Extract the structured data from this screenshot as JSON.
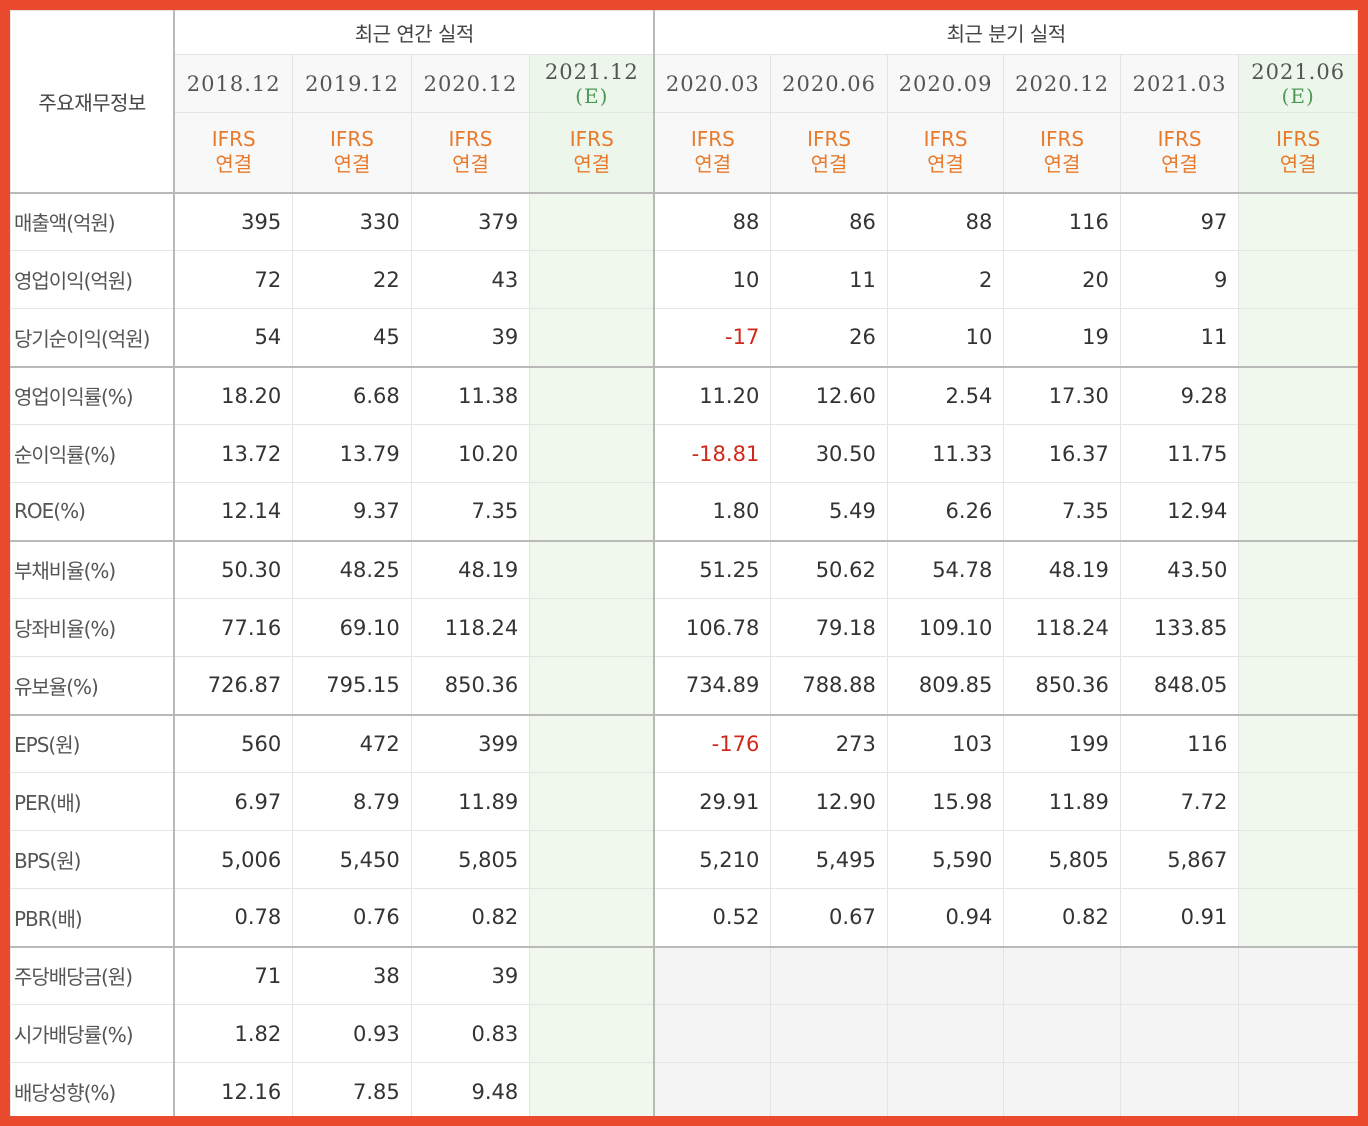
{
  "header": {
    "label_title": "주요재무정보",
    "annual_group": "최근 연간 실적",
    "quarter_group": "최근 분기 실적",
    "estimate_mark": "(E)",
    "ifrs_top": "IFRS",
    "ifrs_bottom": "연결",
    "annual_periods": [
      "2018.12",
      "2019.12",
      "2020.12",
      "2021.12"
    ],
    "quarter_periods": [
      "2020.03",
      "2020.06",
      "2020.09",
      "2020.12",
      "2021.03",
      "2021.06"
    ]
  },
  "colors": {
    "frame": "#ea4a2d",
    "ifrs_text": "#e87a2c",
    "estimate_text": "#4c9a58",
    "estimate_bg": "#f0f8ee",
    "negative": "#d2281c"
  },
  "rows": [
    {
      "label": "매출액(억원)",
      "annual": [
        "395",
        "330",
        "379",
        ""
      ],
      "quarter": [
        "88",
        "86",
        "88",
        "116",
        "97",
        ""
      ]
    },
    {
      "label": "영업이익(억원)",
      "annual": [
        "72",
        "22",
        "43",
        ""
      ],
      "quarter": [
        "10",
        "11",
        "2",
        "20",
        "9",
        ""
      ]
    },
    {
      "label": "당기순이익(억원)",
      "annual": [
        "54",
        "45",
        "39",
        ""
      ],
      "quarter": [
        "-17",
        "26",
        "10",
        "19",
        "11",
        ""
      ]
    },
    {
      "label": "영업이익률(%)",
      "annual": [
        "18.20",
        "6.68",
        "11.38",
        ""
      ],
      "quarter": [
        "11.20",
        "12.60",
        "2.54",
        "17.30",
        "9.28",
        ""
      ]
    },
    {
      "label": "순이익률(%)",
      "annual": [
        "13.72",
        "13.79",
        "10.20",
        ""
      ],
      "quarter": [
        "-18.81",
        "30.50",
        "11.33",
        "16.37",
        "11.75",
        ""
      ]
    },
    {
      "label": "ROE(%)",
      "annual": [
        "12.14",
        "9.37",
        "7.35",
        ""
      ],
      "quarter": [
        "1.80",
        "5.49",
        "6.26",
        "7.35",
        "12.94",
        ""
      ]
    },
    {
      "label": "부채비율(%)",
      "annual": [
        "50.30",
        "48.25",
        "48.19",
        ""
      ],
      "quarter": [
        "51.25",
        "50.62",
        "54.78",
        "48.19",
        "43.50",
        ""
      ]
    },
    {
      "label": "당좌비율(%)",
      "annual": [
        "77.16",
        "69.10",
        "118.24",
        ""
      ],
      "quarter": [
        "106.78",
        "79.18",
        "109.10",
        "118.24",
        "133.85",
        ""
      ]
    },
    {
      "label": "유보율(%)",
      "annual": [
        "726.87",
        "795.15",
        "850.36",
        ""
      ],
      "quarter": [
        "734.89",
        "788.88",
        "809.85",
        "850.36",
        "848.05",
        ""
      ]
    },
    {
      "label": "EPS(원)",
      "annual": [
        "560",
        "472",
        "399",
        ""
      ],
      "quarter": [
        "-176",
        "273",
        "103",
        "199",
        "116",
        ""
      ]
    },
    {
      "label": "PER(배)",
      "annual": [
        "6.97",
        "8.79",
        "11.89",
        ""
      ],
      "quarter": [
        "29.91",
        "12.90",
        "15.98",
        "11.89",
        "7.72",
        ""
      ]
    },
    {
      "label": "BPS(원)",
      "annual": [
        "5,006",
        "5,450",
        "5,805",
        ""
      ],
      "quarter": [
        "5,210",
        "5,495",
        "5,590",
        "5,805",
        "5,867",
        ""
      ]
    },
    {
      "label": "PBR(배)",
      "annual": [
        "0.78",
        "0.76",
        "0.82",
        ""
      ],
      "quarter": [
        "0.52",
        "0.67",
        "0.94",
        "0.82",
        "0.91",
        ""
      ]
    },
    {
      "label": "주당배당금(원)",
      "annual": [
        "71",
        "38",
        "39",
        ""
      ],
      "quarter": [
        "",
        "",
        "",
        "",
        "",
        ""
      ]
    },
    {
      "label": "시가배당률(%)",
      "annual": [
        "1.82",
        "0.93",
        "0.83",
        ""
      ],
      "quarter": [
        "",
        "",
        "",
        "",
        "",
        ""
      ]
    },
    {
      "label": "배당성향(%)",
      "annual": [
        "12.16",
        "7.85",
        "9.48",
        ""
      ],
      "quarter": [
        "",
        "",
        "",
        "",
        "",
        ""
      ]
    }
  ]
}
